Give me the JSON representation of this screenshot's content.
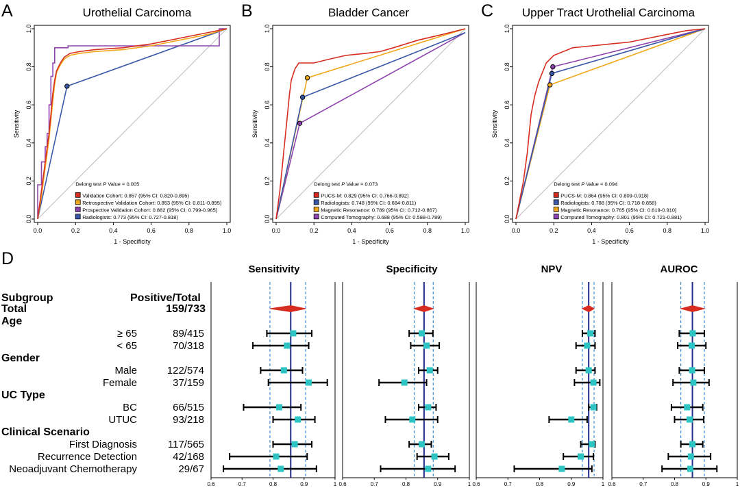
{
  "chart_data": [
    {
      "type": "line",
      "panel": "A",
      "title": "Urothelial Carcinoma",
      "xlabel": "1 - Specificity",
      "ylabel": "Sensitivity",
      "xlim": [
        0,
        1
      ],
      "ylim": [
        0,
        1
      ],
      "ticks": [
        "0.0",
        "0.2",
        "0.4",
        "0.6",
        "0.8",
        "1.0"
      ],
      "stat_prefix": "Delong test ",
      "stat_p": "P",
      "stat_suffix": " Value = 0.005",
      "series": [
        {
          "name": "Validation Cohort: 0.857 (95% CI: 0.820-0.895)",
          "color": "#d62d20",
          "points": [
            [
              0,
              0
            ],
            [
              0.02,
              0.15
            ],
            [
              0.04,
              0.3
            ],
            [
              0.06,
              0.45
            ],
            [
              0.07,
              0.55
            ],
            [
              0.08,
              0.66
            ],
            [
              0.09,
              0.73
            ],
            [
              0.1,
              0.78
            ],
            [
              0.12,
              0.82
            ],
            [
              0.14,
              0.85
            ],
            [
              0.17,
              0.87
            ],
            [
              0.22,
              0.88
            ],
            [
              0.3,
              0.89
            ],
            [
              0.45,
              0.9
            ],
            [
              0.6,
              0.92
            ],
            [
              0.75,
              0.95
            ],
            [
              0.9,
              0.98
            ],
            [
              1,
              1
            ]
          ]
        },
        {
          "name": "Retrospective Validation Cohort: 0.853 (95% CI: 0.811-0.895)",
          "color": "#f2a81d",
          "points": [
            [
              0,
              0
            ],
            [
              0.02,
              0.12
            ],
            [
              0.04,
              0.27
            ],
            [
              0.06,
              0.42
            ],
            [
              0.07,
              0.52
            ],
            [
              0.08,
              0.62
            ],
            [
              0.09,
              0.71
            ],
            [
              0.1,
              0.77
            ],
            [
              0.12,
              0.81
            ],
            [
              0.14,
              0.84
            ],
            [
              0.17,
              0.86
            ],
            [
              0.22,
              0.87
            ],
            [
              0.3,
              0.88
            ],
            [
              0.45,
              0.89
            ],
            [
              0.6,
              0.91
            ],
            [
              0.75,
              0.94
            ],
            [
              0.9,
              0.97
            ],
            [
              1,
              1
            ]
          ]
        },
        {
          "name": "Prospective Validation Cohort: 0.882 (95% CI: 0.799-0.965)",
          "color": "#8e44ad",
          "points": [
            [
              0,
              0
            ],
            [
              0.0,
              0.18
            ],
            [
              0.02,
              0.18
            ],
            [
              0.02,
              0.3
            ],
            [
              0.04,
              0.3
            ],
            [
              0.04,
              0.38
            ],
            [
              0.05,
              0.38
            ],
            [
              0.05,
              0.45
            ],
            [
              0.06,
              0.45
            ],
            [
              0.06,
              0.6
            ],
            [
              0.07,
              0.6
            ],
            [
              0.07,
              0.75
            ],
            [
              0.08,
              0.75
            ],
            [
              0.08,
              0.82
            ],
            [
              0.09,
              0.82
            ],
            [
              0.09,
              0.9
            ],
            [
              0.11,
              0.9
            ],
            [
              0.11,
              0.9
            ],
            [
              0.13,
              0.9
            ],
            [
              0.13,
              0.9
            ],
            [
              0.16,
              0.9
            ],
            [
              0.16,
              0.91
            ],
            [
              0.96,
              0.91
            ],
            [
              0.96,
              1
            ],
            [
              1,
              1
            ]
          ]
        },
        {
          "name": "Radiologists: 0.773 (95% CI: 0.727-0.818)",
          "color": "#3a57a8",
          "points": [
            [
              0,
              0
            ],
            [
              0.155,
              0.698
            ],
            [
              1,
              1
            ]
          ],
          "marker": [
            0.155,
            0.698
          ]
        }
      ]
    },
    {
      "type": "line",
      "panel": "B",
      "title": "Bladder Cancer",
      "xlabel": "1 - Specificity",
      "ylabel": "Sensitivity",
      "xlim": [
        0,
        1
      ],
      "ylim": [
        0,
        1
      ],
      "ticks": [
        "0.0",
        "0.2",
        "0.4",
        "0.6",
        "0.8",
        "1.0"
      ],
      "stat_prefix": "Delong test ",
      "stat_p": "P",
      "stat_suffix": " Value = 0.073",
      "series": [
        {
          "name": "PUCS-M: 0.829 (95% CI: 0.766-0.892)",
          "color": "#d62d20",
          "points": [
            [
              0,
              0
            ],
            [
              0.02,
              0.15
            ],
            [
              0.03,
              0.25
            ],
            [
              0.04,
              0.35
            ],
            [
              0.05,
              0.45
            ],
            [
              0.06,
              0.55
            ],
            [
              0.07,
              0.65
            ],
            [
              0.08,
              0.73
            ],
            [
              0.1,
              0.79
            ],
            [
              0.12,
              0.82
            ],
            [
              0.2,
              0.82
            ],
            [
              0.28,
              0.84
            ],
            [
              0.37,
              0.86
            ],
            [
              0.47,
              0.87
            ],
            [
              0.55,
              0.88
            ],
            [
              0.62,
              0.9
            ],
            [
              0.75,
              0.94
            ],
            [
              0.88,
              0.97
            ],
            [
              1,
              1
            ]
          ]
        },
        {
          "name": "Radiologists: 0.748 (95% CI: 0.684-0.811)",
          "color": "#3a57a8",
          "points": [
            [
              0,
              0
            ],
            [
              0.14,
              0.64
            ],
            [
              1,
              0.98
            ]
          ],
          "marker": [
            0.14,
            0.64
          ]
        },
        {
          "name": "Magnetic Resonance: 0.789 (95% CI: 0.712-0.867)",
          "color": "#f2a81d",
          "points": [
            [
              0,
              0
            ],
            [
              0.165,
              0.742
            ],
            [
              1,
              1
            ]
          ],
          "marker": [
            0.165,
            0.742
          ]
        },
        {
          "name": "Computed Tomography: 0.688 (95% CI: 0.588-0.789)",
          "color": "#8e44ad",
          "points": [
            [
              0,
              0
            ],
            [
              0.125,
              0.503
            ],
            [
              1,
              0.98
            ]
          ],
          "marker": [
            0.125,
            0.503
          ]
        }
      ]
    },
    {
      "type": "line",
      "panel": "C",
      "title": "Upper Tract Urothelial Carcinoma",
      "xlabel": "1 - Specificity",
      "ylabel": "Sensitivity",
      "xlim": [
        0,
        1
      ],
      "ylim": [
        0,
        1
      ],
      "ticks": [
        "0.0",
        "0.2",
        "0.4",
        "0.6",
        "0.8",
        "1.0"
      ],
      "stat_prefix": "Delong test ",
      "stat_p": "P",
      "stat_suffix": " Value = 0.094",
      "series": [
        {
          "name": "PUCS-M: 0.864 (95% CI: 0.809-0.918)",
          "color": "#d62d20",
          "points": [
            [
              0,
              0
            ],
            [
              0.02,
              0.1
            ],
            [
              0.04,
              0.2
            ],
            [
              0.06,
              0.35
            ],
            [
              0.07,
              0.45
            ],
            [
              0.08,
              0.55
            ],
            [
              0.1,
              0.65
            ],
            [
              0.12,
              0.72
            ],
            [
              0.14,
              0.77
            ],
            [
              0.16,
              0.82
            ],
            [
              0.2,
              0.86
            ],
            [
              0.25,
              0.88
            ],
            [
              0.3,
              0.9
            ],
            [
              0.4,
              0.91
            ],
            [
              0.5,
              0.92
            ],
            [
              0.6,
              0.93
            ],
            [
              0.7,
              0.95
            ],
            [
              0.8,
              0.97
            ],
            [
              0.9,
              0.99
            ],
            [
              1,
              1
            ]
          ]
        },
        {
          "name": "Radiologists: 0.788 (95% CI: 0.718-0.858)",
          "color": "#3a57a8",
          "points": [
            [
              0,
              0
            ],
            [
              0.19,
              0.765
            ],
            [
              1,
              1
            ]
          ],
          "marker": [
            0.19,
            0.765
          ]
        },
        {
          "name": "Magnetic Resonance: 0.765 (95% CI: 0.619-0.910)",
          "color": "#f2a81d",
          "points": [
            [
              0,
              0
            ],
            [
              0.18,
              0.705
            ],
            [
              1,
              1
            ]
          ],
          "marker": [
            0.18,
            0.705
          ]
        },
        {
          "name": "Computed Tomography: 0.801 (95% CI: 0.721-0.881)",
          "color": "#8e44ad",
          "points": [
            [
              0,
              0
            ],
            [
              0.195,
              0.8
            ],
            [
              1,
              1
            ]
          ],
          "marker": [
            0.195,
            0.8
          ]
        }
      ]
    },
    {
      "type": "forest",
      "panel": "D",
      "header_subgroup": "Subgroup",
      "header_positive": "Positive/Total",
      "xlim": [
        0.6,
        1.0
      ],
      "xticks": [
        "0.6",
        "0.7",
        "0.8",
        "0.9",
        "1"
      ],
      "rows": [
        {
          "label": "Total",
          "value": "159/733",
          "kind": "total"
        },
        {
          "label": "Age",
          "value": "",
          "kind": "category"
        },
        {
          "label": "≥ 65",
          "value": "89/415",
          "kind": "item"
        },
        {
          "label": "< 65",
          "value": "70/318",
          "kind": "item"
        },
        {
          "label": "Gender",
          "value": "",
          "kind": "category"
        },
        {
          "label": "Male",
          "value": "122/574",
          "kind": "item"
        },
        {
          "label": "Female",
          "value": "37/159",
          "kind": "item"
        },
        {
          "label": "UC Type",
          "value": "",
          "kind": "category"
        },
        {
          "label": "BC",
          "value": "66/515",
          "kind": "item"
        },
        {
          "label": "UTUC",
          "value": "93/218",
          "kind": "item"
        },
        {
          "label": "Clinical Scenario",
          "value": "",
          "kind": "category"
        },
        {
          "label": "First Diagnosis",
          "value": "117/565",
          "kind": "item"
        },
        {
          "label": "Recurrence Detection",
          "value": "42/168",
          "kind": "item"
        },
        {
          "label": "Neoadjuvant Chemotherapy",
          "value": "29/67",
          "kind": "item"
        }
      ],
      "panels": [
        {
          "title": "Sensitivity",
          "overall": 0.857,
          "ci": [
            0.79,
            0.905
          ],
          "estimates": [
            [
              0.865,
              0.78,
              0.925
            ],
            [
              0.845,
              0.735,
              0.915
            ],
            [
              0.835,
              0.76,
              0.895
            ],
            [
              0.915,
              0.785,
              0.975
            ],
            [
              0.82,
              0.705,
              0.89
            ],
            [
              0.88,
              0.8,
              0.935
            ],
            [
              0.87,
              0.8,
              0.925
            ],
            [
              0.81,
              0.66,
              0.91
            ],
            [
              0.825,
              0.64,
              0.94
            ]
          ]
        },
        {
          "title": "Specificity",
          "overall": 0.857,
          "ci": [
            0.826,
            0.886
          ],
          "estimates": [
            [
              0.85,
              0.81,
              0.885
            ],
            [
              0.865,
              0.815,
              0.905
            ],
            [
              0.875,
              0.84,
              0.9
            ],
            [
              0.795,
              0.715,
              0.865
            ],
            [
              0.87,
              0.84,
              0.895
            ],
            [
              0.82,
              0.735,
              0.9
            ],
            [
              0.85,
              0.81,
              0.88
            ],
            [
              0.89,
              0.835,
              0.935
            ],
            [
              0.87,
              0.72,
              0.955
            ]
          ]
        },
        {
          "title": "NPV",
          "overall": 0.955,
          "ci": [
            0.935,
            0.972
          ],
          "estimates": [
            [
              0.96,
              0.935,
              0.975
            ],
            [
              0.95,
              0.915,
              0.975
            ],
            [
              0.955,
              0.915,
              0.975
            ],
            [
              0.97,
              0.91,
              0.99
            ],
            [
              0.97,
              0.955,
              0.98
            ],
            [
              0.9,
              0.83,
              0.95
            ],
            [
              0.965,
              0.93,
              0.975
            ],
            [
              0.93,
              0.875,
              0.97
            ],
            [
              0.87,
              0.72,
              0.965
            ]
          ]
        },
        {
          "title": "AUROC",
          "overall": 0.857,
          "ci": [
            0.82,
            0.895
          ],
          "estimates": [
            [
              0.858,
              0.815,
              0.895
            ],
            [
              0.855,
              0.81,
              0.9
            ],
            [
              0.856,
              0.815,
              0.895
            ],
            [
              0.86,
              0.795,
              0.91
            ],
            [
              0.84,
              0.79,
              0.89
            ],
            [
              0.848,
              0.8,
              0.893
            ],
            [
              0.857,
              0.82,
              0.89
            ],
            [
              0.852,
              0.78,
              0.915
            ],
            [
              0.85,
              0.76,
              0.935
            ]
          ]
        }
      ]
    }
  ],
  "panel_letters": [
    "A",
    "B",
    "C",
    "D"
  ],
  "colors": {
    "red": "#d62d20",
    "orange": "#f2a81d",
    "purple": "#8e44ad",
    "blue": "#3a57a8",
    "teal": "#2ec4c4",
    "navy": "#1f2a8a",
    "dashed": "#3b8fd9",
    "diamond": "#d62d20"
  }
}
